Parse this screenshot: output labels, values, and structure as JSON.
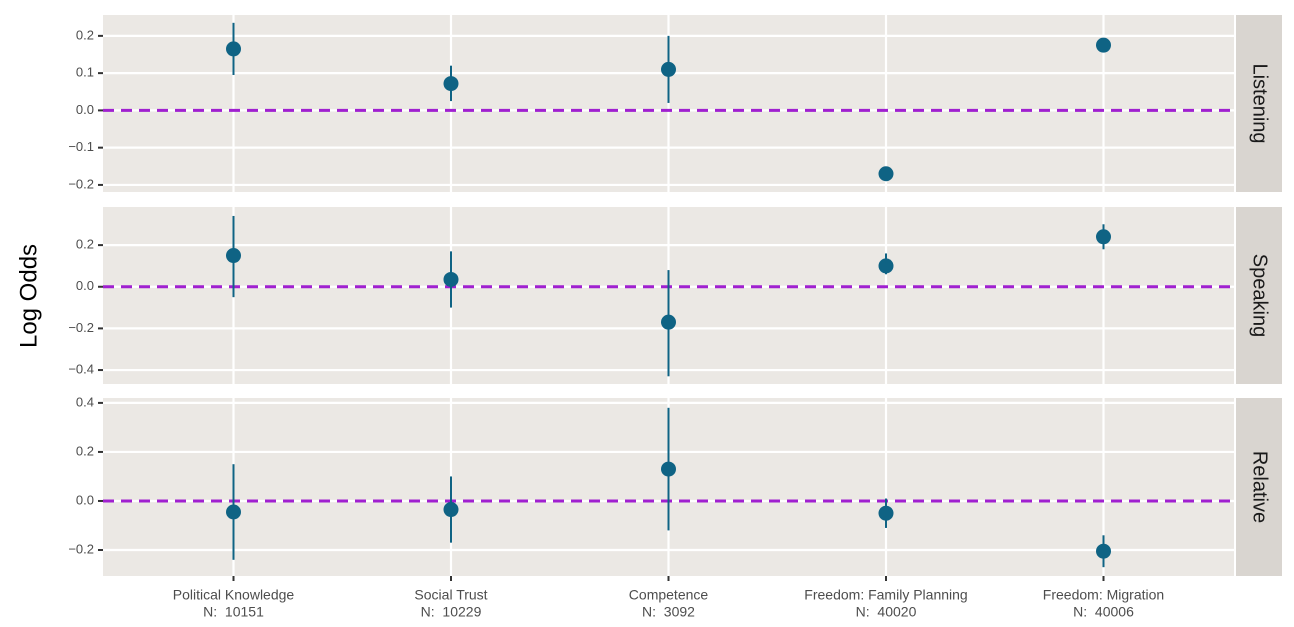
{
  "chart_data": {
    "type": "pointrange",
    "y_label": "Log Odds",
    "categories": [
      "Political Knowledge",
      "Social Trust",
      "Competence",
      "Freedom: Family Planning",
      "Freedom: Migration"
    ],
    "category_notes": [
      "N:  10151",
      "N:  10229",
      "N:  3092",
      "N:  40020",
      "N:  40006"
    ],
    "color": "#0f6384",
    "reference_line": {
      "value": 0,
      "color": "#a020d0"
    },
    "grid": true,
    "facets": [
      {
        "name": "Listening",
        "values": [
          0.165,
          0.072,
          0.11,
          -0.17,
          0.175
        ],
        "lower": [
          0.095,
          0.025,
          0.02,
          -0.185,
          0.165
        ],
        "upper": [
          0.235,
          0.12,
          0.2,
          -0.155,
          0.185
        ],
        "ylim": [
          -0.219,
          0.256
        ],
        "yticks": [
          {
            "value": -0.2,
            "label": "−0.2"
          },
          {
            "value": -0.1,
            "label": "−0.1"
          },
          {
            "value": 0,
            "label": "0.0"
          },
          0.1,
          0.2
        ]
      },
      {
        "name": "Speaking",
        "values": [
          0.15,
          0.035,
          -0.17,
          0.1,
          0.24
        ],
        "lower": [
          -0.05,
          -0.1,
          -0.43,
          0.06,
          0.18
        ],
        "upper": [
          0.34,
          0.17,
          0.08,
          0.16,
          0.3
        ],
        "ylim": [
          -0.467,
          0.383
        ],
        "yticks": [
          {
            "value": -0.4,
            "label": "−0.4"
          },
          {
            "value": -0.2,
            "label": "−0.2"
          },
          {
            "value": 0,
            "label": "0.0"
          },
          0.2
        ]
      },
      {
        "name": "Relative",
        "values": [
          -0.045,
          -0.035,
          0.13,
          -0.05,
          -0.205
        ],
        "lower": [
          -0.24,
          -0.17,
          -0.12,
          -0.11,
          -0.27
        ],
        "upper": [
          0.15,
          0.1,
          0.38,
          0.01,
          -0.14
        ],
        "ylim": [
          -0.306,
          0.42
        ],
        "yticks": [
          {
            "value": -0.2,
            "label": "−0.2"
          },
          {
            "value": 0,
            "label": "0.0"
          },
          0.2,
          0.4
        ]
      }
    ]
  }
}
